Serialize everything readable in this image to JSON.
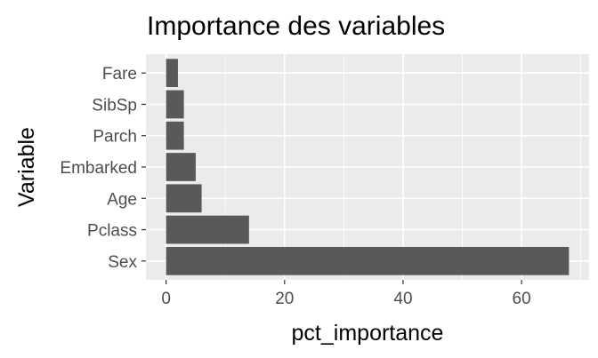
{
  "chart_data": {
    "type": "bar",
    "orientation": "horizontal",
    "title": "Importance des variables",
    "xlabel": "pct_importance",
    "ylabel": "Variable",
    "categories": [
      "Sex",
      "Pclass",
      "Age",
      "Embarked",
      "Parch",
      "SibSp",
      "Fare"
    ],
    "values": [
      68,
      14,
      6,
      5,
      3,
      3,
      2
    ],
    "xlim": [
      -3.4,
      71.4
    ],
    "xticks": [
      0,
      20,
      40,
      60
    ],
    "grid": true,
    "colors": {
      "bar": "#595959",
      "panel": "#ebebeb",
      "grid": "#ffffff"
    }
  }
}
